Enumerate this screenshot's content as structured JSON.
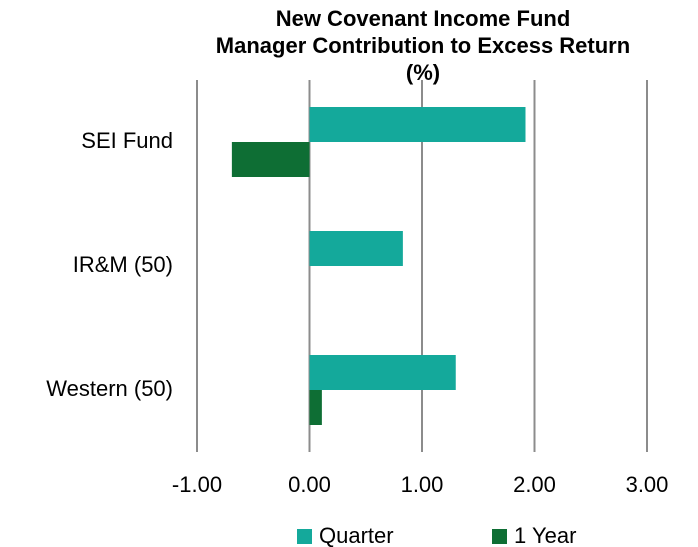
{
  "chart_data": {
    "type": "hbar",
    "title": [
      "New Covenant Income Fund",
      "Manager Contribution to Excess Return",
      "(%)"
    ],
    "categories": [
      "SEI Fund",
      "IR&M (50)",
      "Western (50)"
    ],
    "series": [
      {
        "name": "Quarter",
        "color": "#14a99b",
        "values": [
          1.92,
          0.83,
          1.3
        ]
      },
      {
        "name": "1 Year",
        "color": "#0e6e34",
        "values": [
          -0.69,
          null,
          0.11
        ]
      }
    ],
    "xlim": [
      -1,
      3
    ],
    "xticks": [
      {
        "value": -1,
        "label": "-1.00"
      },
      {
        "value": 0,
        "label": "0.00"
      },
      {
        "value": 1,
        "label": "1.00"
      },
      {
        "value": 2,
        "label": "2.00"
      },
      {
        "value": 3,
        "label": "3.00"
      }
    ],
    "grid": true,
    "legend": "bottom"
  }
}
